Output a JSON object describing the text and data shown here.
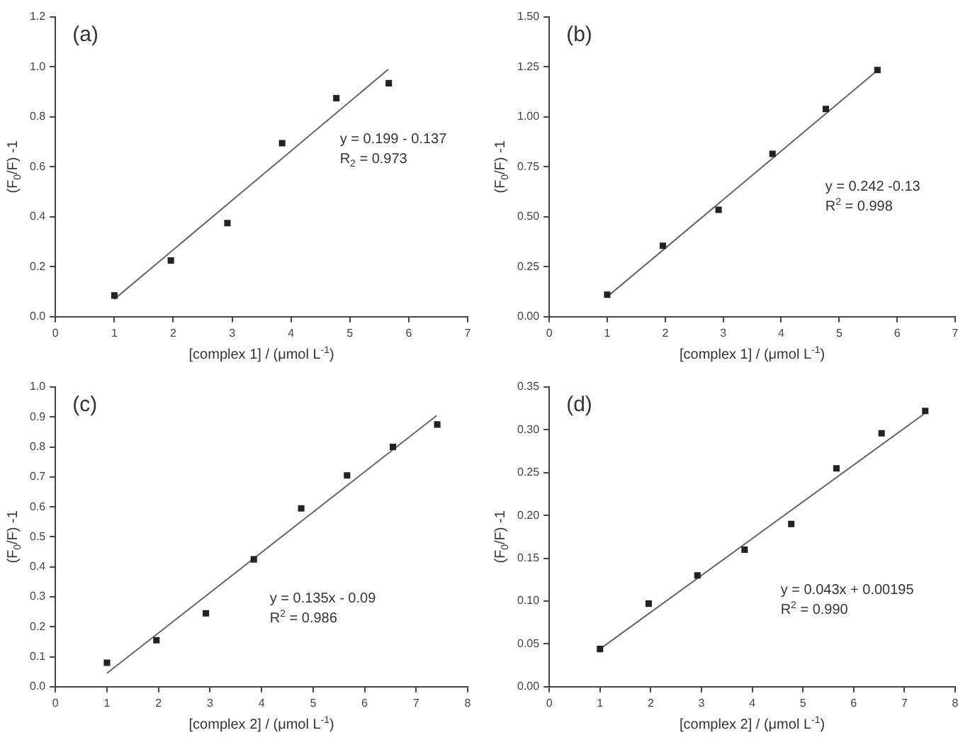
{
  "chart_data": [
    {
      "type": "scatter",
      "title": "(a)",
      "xlabel": "[complex 1] / (μmol L$^{-1}$)",
      "ylabel": "(F$_{0}$/F) -1",
      "marker": "square",
      "xlim": [
        0,
        7
      ],
      "xticks": [
        0,
        1,
        2,
        3,
        4,
        5,
        6,
        7
      ],
      "ylim": [
        0,
        1.2
      ],
      "yticks": [
        {
          "value": 0,
          "label": "0.0"
        },
        {
          "value": 0.2,
          "label": "0.2"
        },
        {
          "value": 0.4,
          "label": "0.4"
        },
        {
          "value": 0.6,
          "label": "0.6"
        },
        {
          "value": 0.8,
          "label": "0.8"
        },
        {
          "value": 1,
          "label": "1.0"
        },
        {
          "value": 1.2,
          "label": "1.2"
        }
      ],
      "annotations": [
        "y = 0.199 - 0.137",
        "R$_{2}$ = 0.973"
      ],
      "series": [
        {
          "type": "scatter",
          "color": "#222222",
          "x": [
            1,
            1.96,
            2.92,
            3.85,
            4.77,
            5.66
          ],
          "values": [
            0.085,
            0.225,
            0.375,
            0.695,
            0.875,
            0.935
          ]
        },
        {
          "type": "line",
          "color": "#666666",
          "marker": "none",
          "x": [
            1.0,
            5.65
          ],
          "values": [
            0.07,
            0.99
          ]
        }
      ]
    },
    {
      "type": "scatter",
      "title": "(b)",
      "xlabel": "[complex 1] / (μmol L$^{-1}$)",
      "ylabel": "(F$_{0}$/F) -1",
      "marker": "square",
      "xlim": [
        0,
        7
      ],
      "xticks": [
        0,
        1,
        2,
        3,
        4,
        5,
        6,
        7
      ],
      "ylim": [
        0,
        1.5
      ],
      "yticks": [
        {
          "value": 0,
          "label": "0.00"
        },
        {
          "value": 0.25,
          "label": "0.25"
        },
        {
          "value": 0.5,
          "label": "0.50"
        },
        {
          "value": 0.75,
          "label": "0.75"
        },
        {
          "value": 1,
          "label": "1.00"
        },
        {
          "value": 1.25,
          "label": "1.25"
        },
        {
          "value": 1.5,
          "label": "1.50"
        }
      ],
      "annotations": [
        "y = 0.242 -0.13",
        "R$^{2}$ = 0.998"
      ],
      "series": [
        {
          "type": "scatter",
          "color": "#222222",
          "x": [
            1,
            1.96,
            2.92,
            3.85,
            4.77,
            5.66
          ],
          "values": [
            0.11,
            0.355,
            0.535,
            0.815,
            1.04,
            1.235
          ]
        },
        {
          "type": "line",
          "color": "#666666",
          "marker": "none",
          "x": [
            1.0,
            5.65
          ],
          "values": [
            0.1,
            1.23
          ]
        }
      ]
    },
    {
      "type": "scatter",
      "title": "(c)",
      "xlabel": "[complex 2] / (μmol L$^{-1}$)",
      "ylabel": "(F$_{0}$/F) -1",
      "marker": "square",
      "xlim": [
        0,
        8
      ],
      "xticks": [
        0,
        1,
        2,
        3,
        4,
        5,
        6,
        7,
        8
      ],
      "ylim": [
        0,
        1
      ],
      "yticks": [
        {
          "value": 0,
          "label": "0.0"
        },
        {
          "value": 0.1,
          "label": "0.1"
        },
        {
          "value": 0.2,
          "label": "0.2"
        },
        {
          "value": 0.3,
          "label": "0.3"
        },
        {
          "value": 0.4,
          "label": "0.4"
        },
        {
          "value": 0.5,
          "label": "0.5"
        },
        {
          "value": 0.6,
          "label": "0.6"
        },
        {
          "value": 0.7,
          "label": "0.7"
        },
        {
          "value": 0.8,
          "label": "0.8"
        },
        {
          "value": 0.9,
          "label": "0.9"
        },
        {
          "value": 1,
          "label": "1.0"
        }
      ],
      "annotations": [
        "y = 0.135x - 0.09",
        "R$^{2}$ = 0.986"
      ],
      "series": [
        {
          "type": "scatter",
          "color": "#222222",
          "x": [
            1,
            1.96,
            2.92,
            3.85,
            4.77,
            5.66,
            6.55,
            7.41
          ],
          "values": [
            0.08,
            0.155,
            0.245,
            0.425,
            0.595,
            0.705,
            0.8,
            0.875
          ]
        },
        {
          "type": "line",
          "color": "#666666",
          "marker": "none",
          "x": [
            1.0,
            7.4
          ],
          "values": [
            0.045,
            0.905
          ]
        }
      ]
    },
    {
      "type": "scatter",
      "title": "(d)",
      "xlabel": "[complex 2] / (μmol L$^{-1}$)",
      "ylabel": "(F$_{0}$/F) -1",
      "marker": "square",
      "xlim": [
        0,
        8
      ],
      "xticks": [
        0,
        1,
        2,
        3,
        4,
        5,
        6,
        7,
        8
      ],
      "ylim": [
        0,
        0.35
      ],
      "yticks": [
        {
          "value": 0,
          "label": "0.00"
        },
        {
          "value": 0.05,
          "label": "0.05"
        },
        {
          "value": 0.1,
          "label": "0.10"
        },
        {
          "value": 0.15,
          "label": "0.15"
        },
        {
          "value": 0.2,
          "label": "0.20"
        },
        {
          "value": 0.25,
          "label": "0.25"
        },
        {
          "value": 0.3,
          "label": "0.30"
        },
        {
          "value": 0.35,
          "label": "0.35"
        }
      ],
      "annotations": [
        "y = 0.043x + 0.00195",
        "R$^{2}$ = 0.990"
      ],
      "series": [
        {
          "type": "scatter",
          "color": "#222222",
          "x": [
            1,
            1.96,
            2.92,
            3.85,
            4.77,
            5.66,
            6.55,
            7.41
          ],
          "values": [
            0.044,
            0.097,
            0.13,
            0.16,
            0.19,
            0.255,
            0.296,
            0.322
          ]
        },
        {
          "type": "line",
          "color": "#666666",
          "marker": "none",
          "x": [
            1.0,
            7.42
          ],
          "values": [
            0.044,
            0.32
          ]
        }
      ]
    }
  ]
}
